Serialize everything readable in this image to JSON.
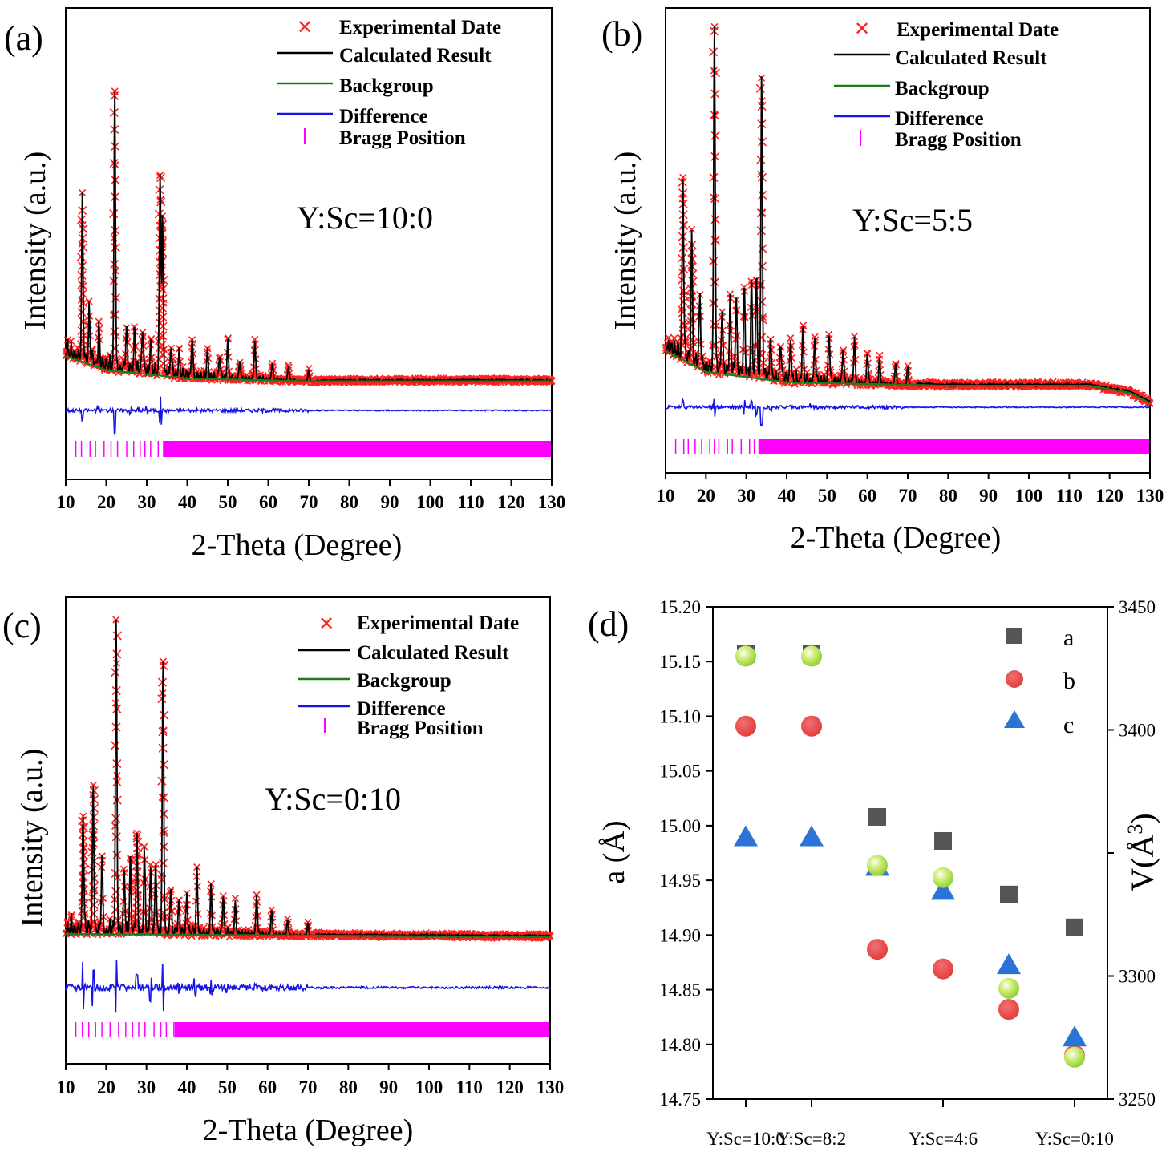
{
  "colors": {
    "exp": "#ff2020",
    "calc": "#000000",
    "bg": "#1a7d1a",
    "diff": "#1414e6",
    "bragg": "#ff00ff",
    "sq": "#555555",
    "circle": "#e84040",
    "tri": "#2a74d8",
    "sphere": "#a8dd40"
  },
  "chart_data": [
    {
      "id": "a",
      "panel_label": "(a)",
      "type": "line",
      "title": "",
      "xlabel": "2-Theta (Degree)",
      "ylabel": "Intensity (a.u.)",
      "xlim": [
        10,
        130
      ],
      "xticks": [
        "10",
        "20",
        "30",
        "40",
        "50",
        "60",
        "70",
        "80",
        "90",
        "100",
        "110",
        "120",
        "130"
      ],
      "annotation": "Y:Sc=10:0",
      "legend": [
        "Experimental Date",
        "Calculated Result",
        "Backgroup",
        "Difference",
        "Bragg Position"
      ],
      "peaks": [
        [
          14.1,
          0.55
        ],
        [
          15.8,
          0.18
        ],
        [
          18.2,
          0.12
        ],
        [
          22.1,
          1.0
        ],
        [
          25,
          0.15
        ],
        [
          27,
          0.13
        ],
        [
          29,
          0.15
        ],
        [
          31,
          0.12
        ],
        [
          33.3,
          0.72
        ],
        [
          33.9,
          0.55
        ],
        [
          36,
          0.1
        ],
        [
          38,
          0.08
        ],
        [
          41.2,
          0.14
        ],
        [
          45,
          0.1
        ],
        [
          48,
          0.08
        ],
        [
          50,
          0.13
        ],
        [
          53,
          0.06
        ],
        [
          56.7,
          0.14
        ],
        [
          61,
          0.06
        ],
        [
          65,
          0.05
        ],
        [
          70,
          0.04
        ]
      ],
      "background": [
        [
          10,
          0.04
        ],
        [
          20,
          -0.01
        ],
        [
          40,
          -0.04
        ],
        [
          70,
          -0.05
        ],
        [
          130,
          -0.05
        ]
      ],
      "diff_spikes": [
        [
          14.1,
          0.45
        ],
        [
          22.1,
          0.9
        ],
        [
          33.4,
          0.6
        ],
        [
          30,
          0.12
        ],
        [
          28,
          0.1
        ],
        [
          26,
          0.1
        ],
        [
          18,
          0.1
        ]
      ],
      "bragg_dense_from": 34
    },
    {
      "id": "b",
      "panel_label": "(b)",
      "type": "line",
      "title": "",
      "xlabel": "2-Theta (Degree)",
      "ylabel": "Intensity (a.u.)",
      "xlim": [
        10,
        130
      ],
      "xticks": [
        "10",
        "20",
        "30",
        "40",
        "50",
        "60",
        "70",
        "80",
        "90",
        "100",
        "110",
        "120",
        "130"
      ],
      "annotation": "Y:Sc=5:5",
      "legend": [
        "Experimental Date",
        "Calculated Result",
        "Backgroup",
        "Difference",
        "Bragg Position"
      ],
      "peaks": [
        [
          14.3,
          0.52
        ],
        [
          16.5,
          0.35
        ],
        [
          18.5,
          0.2
        ],
        [
          22.1,
          1.0
        ],
        [
          24,
          0.18
        ],
        [
          26,
          0.2
        ],
        [
          27.5,
          0.22
        ],
        [
          29.5,
          0.25
        ],
        [
          31.3,
          0.27
        ],
        [
          32.5,
          0.3
        ],
        [
          33.8,
          0.85
        ],
        [
          36,
          0.12
        ],
        [
          38.5,
          0.1
        ],
        [
          41,
          0.12
        ],
        [
          44,
          0.15
        ],
        [
          47,
          0.13
        ],
        [
          50.5,
          0.14
        ],
        [
          54,
          0.1
        ],
        [
          56.8,
          0.13
        ],
        [
          60,
          0.09
        ],
        [
          63,
          0.07
        ],
        [
          67,
          0.06
        ],
        [
          70,
          0.05
        ]
      ],
      "background": [
        [
          10,
          0.04
        ],
        [
          20,
          -0.02
        ],
        [
          40,
          -0.05
        ],
        [
          80,
          -0.06
        ],
        [
          100,
          -0.06
        ],
        [
          115,
          -0.06
        ],
        [
          125,
          -0.08
        ],
        [
          130,
          -0.11
        ]
      ],
      "diff_spikes": [
        [
          14.3,
          0.3
        ],
        [
          22.1,
          0.4
        ],
        [
          29.5,
          0.3
        ],
        [
          31.3,
          0.3
        ],
        [
          32.5,
          0.35
        ],
        [
          33.8,
          0.75
        ],
        [
          36,
          0.15
        ],
        [
          41,
          0.1
        ],
        [
          46,
          0.1
        ]
      ],
      "bragg_dense_from": 33
    },
    {
      "id": "c",
      "panel_label": "(c)",
      "type": "line",
      "title": "",
      "xlabel": "2-Theta (Degree)",
      "ylabel": "Intensity (a.u.)",
      "xlim": [
        10,
        130
      ],
      "xticks": [
        "10",
        "20",
        "30",
        "40",
        "50",
        "60",
        "70",
        "80",
        "90",
        "100",
        "110",
        "120",
        "130"
      ],
      "annotation": "Y:Sc=0:10",
      "legend": [
        "Experimental Date",
        "Calculated Result",
        "Backgroup",
        "Difference",
        "Bragg Position"
      ],
      "peaks": [
        [
          14.3,
          0.38
        ],
        [
          16.8,
          0.48
        ],
        [
          19,
          0.25
        ],
        [
          22.5,
          1.0
        ],
        [
          24.5,
          0.2
        ],
        [
          26,
          0.22
        ],
        [
          27.6,
          0.33
        ],
        [
          29.5,
          0.25
        ],
        [
          31,
          0.2
        ],
        [
          32.3,
          0.22
        ],
        [
          34.1,
          0.9
        ],
        [
          36,
          0.15
        ],
        [
          38,
          0.1
        ],
        [
          40,
          0.12
        ],
        [
          42.5,
          0.2
        ],
        [
          46,
          0.15
        ],
        [
          49,
          0.12
        ],
        [
          52,
          0.1
        ],
        [
          57.3,
          0.13
        ],
        [
          61,
          0.08
        ],
        [
          65,
          0.05
        ],
        [
          70,
          0.04
        ]
      ],
      "background": [
        [
          10,
          0.0
        ],
        [
          130,
          -0.01
        ]
      ],
      "diff_spikes": [
        [
          14.3,
          0.55
        ],
        [
          16.8,
          0.4
        ],
        [
          22.5,
          0.55
        ],
        [
          27.6,
          0.3
        ],
        [
          31,
          0.25
        ],
        [
          34.1,
          0.55
        ],
        [
          38,
          0.15
        ],
        [
          42,
          0.15
        ],
        [
          46,
          0.12
        ],
        [
          50,
          0.1
        ],
        [
          57,
          0.1
        ]
      ],
      "bragg_dense_from": 37
    },
    {
      "id": "d",
      "panel_label": "(d)",
      "type": "scatter",
      "title": "",
      "ylabel": "a (Å)",
      "y2label_main": "V(Å",
      "y2label_sup": "3",
      "y2label_tail": ")",
      "ylim": [
        14.75,
        15.2
      ],
      "y2lim": [
        3250,
        3450
      ],
      "yticks": [
        "14.75",
        "14.80",
        "14.85",
        "14.90",
        "14.95",
        "15.00",
        "15.05",
        "15.10",
        "15.15",
        "15.20"
      ],
      "y2ticks": [
        "3250",
        "3300",
        "3400",
        "3450"
      ],
      "xpositions": [
        0,
        1,
        2,
        3,
        4,
        5
      ],
      "xticklabels": [
        {
          "pos": 0,
          "text": "Y:Sc=10:0"
        },
        {
          "pos": 1,
          "text": "Y:Sc=8:2"
        },
        {
          "pos": 3,
          "text": "Y:Sc=4:6"
        },
        {
          "pos": 5,
          "text": "Y:Sc=0:10"
        }
      ],
      "legend": [
        "a",
        "b",
        "c"
      ],
      "series": [
        {
          "name": "a",
          "marker": "square",
          "axis": "left",
          "values": [
            15.157,
            15.157,
            15.008,
            14.986,
            14.937,
            14.907
          ]
        },
        {
          "name": "b",
          "marker": "circle",
          "axis": "left",
          "values": [
            15.091,
            15.091,
            14.887,
            14.869,
            14.832,
            14.79
          ]
        },
        {
          "name": "c",
          "marker": "triangle",
          "axis": "left",
          "values": [
            14.99,
            14.99,
            14.963,
            14.941,
            14.873,
            14.807
          ]
        },
        {
          "name": "V",
          "marker": "sphere",
          "axis": "right",
          "values": [
            3430,
            3430,
            3345,
            3340,
            3295,
            3267
          ]
        }
      ]
    }
  ]
}
